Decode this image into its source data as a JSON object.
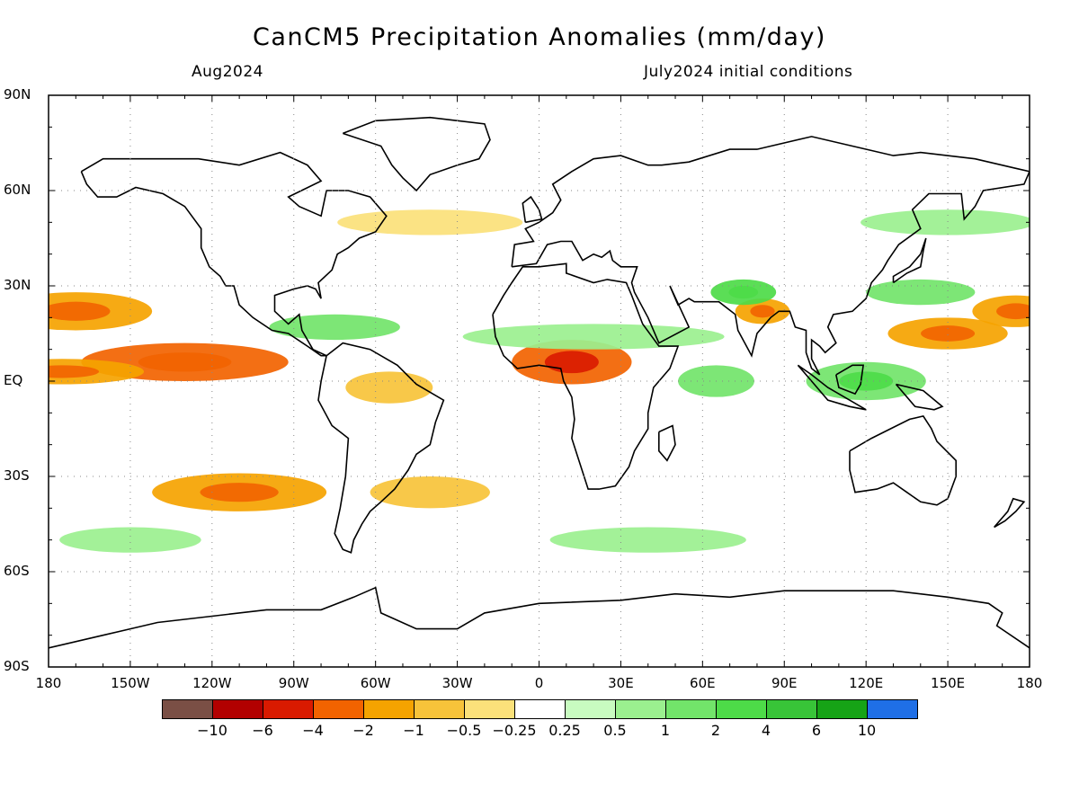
{
  "title": "CanCM5 Precipitation Anomalies (mm/day)",
  "valid_month": "Aug2024",
  "init_label": "July2024 initial conditions",
  "lat_labels": [
    "90N",
    "60N",
    "30N",
    "EQ",
    "30S",
    "60S",
    "90S"
  ],
  "lon_labels": [
    "180",
    "150W",
    "120W",
    "90W",
    "60W",
    "30W",
    "0",
    "30E",
    "60E",
    "90E",
    "120E",
    "150E",
    "180"
  ],
  "colorbar": {
    "colors": [
      "#7a4f45",
      "#b20000",
      "#d91a00",
      "#f26300",
      "#f5a300",
      "#f7c33a",
      "#fbe17a",
      "#ffffff",
      "#c8fbc0",
      "#9bf08f",
      "#72e46a",
      "#4ddb48",
      "#38c438",
      "#16a316",
      "#1f6fe6"
    ],
    "labels": [
      "−10",
      "−6",
      "−4",
      "−2",
      "−1",
      "−0.5",
      "−0.25",
      "0.25",
      "0.5",
      "1",
      "2",
      "4",
      "6",
      "10"
    ]
  },
  "map_data": {
    "projection": "equirectangular",
    "lon_range": [
      -180,
      180
    ],
    "lat_range": [
      -90,
      90
    ],
    "units": "mm/day",
    "anomaly_regions": [
      {
        "region": "East Pacific ITCZ",
        "lon_center": -130,
        "lat_center": 6,
        "value": -2.5
      },
      {
        "region": "Central Pacific near equator",
        "lon_center": -175,
        "lat_center": 3,
        "value": -2
      },
      {
        "region": "Subtropical North Pacific",
        "lon_center": -170,
        "lat_center": 22,
        "value": -1.5
      },
      {
        "region": "South Pacific convergence band",
        "lon_center": -110,
        "lat_center": -35,
        "value": -1.5
      },
      {
        "region": "Equatorial Africa",
        "lon_center": 12,
        "lat_center": 6,
        "value": -3
      },
      {
        "region": "Northern South America",
        "lon_center": -55,
        "lat_center": -2,
        "value": -1
      },
      {
        "region": "South Atlantic off Brazil",
        "lon_center": -40,
        "lat_center": -35,
        "value": -1
      },
      {
        "region": "Western North Pacific",
        "lon_center": 150,
        "lat_center": 15,
        "value": -2
      },
      {
        "region": "Central North Pacific",
        "lon_center": 175,
        "lat_center": 22,
        "value": -1.5
      },
      {
        "region": "Bay of Bengal / India",
        "lon_center": 82,
        "lat_center": 22,
        "value": -2
      },
      {
        "region": "Sahel",
        "lon_center": 20,
        "lat_center": 14,
        "value": 0.5
      },
      {
        "region": "Maritime Continent",
        "lon_center": 120,
        "lat_center": 0,
        "value": 1.5
      },
      {
        "region": "Arabian Sea / India",
        "lon_center": 75,
        "lat_center": 28,
        "value": 2
      },
      {
        "region": "Western Indian Ocean",
        "lon_center": 65,
        "lat_center": 0,
        "value": 1
      },
      {
        "region": "Caribbean",
        "lon_center": -75,
        "lat_center": 17,
        "value": 1
      },
      {
        "region": "Western Pacific north of equator",
        "lon_center": 140,
        "lat_center": 28,
        "value": 1
      },
      {
        "region": "Southern Ocean Indian sector",
        "lon_center": 40,
        "lat_center": -50,
        "value": 0.5
      },
      {
        "region": "South Pacific mid-latitudes",
        "lon_center": -150,
        "lat_center": -50,
        "value": 0.5
      },
      {
        "region": "North Pacific mid-latitudes",
        "lon_center": 150,
        "lat_center": 50,
        "value": 0.5
      },
      {
        "region": "North Atlantic",
        "lon_center": -40,
        "lat_center": 50,
        "value": -0.5
      }
    ]
  }
}
